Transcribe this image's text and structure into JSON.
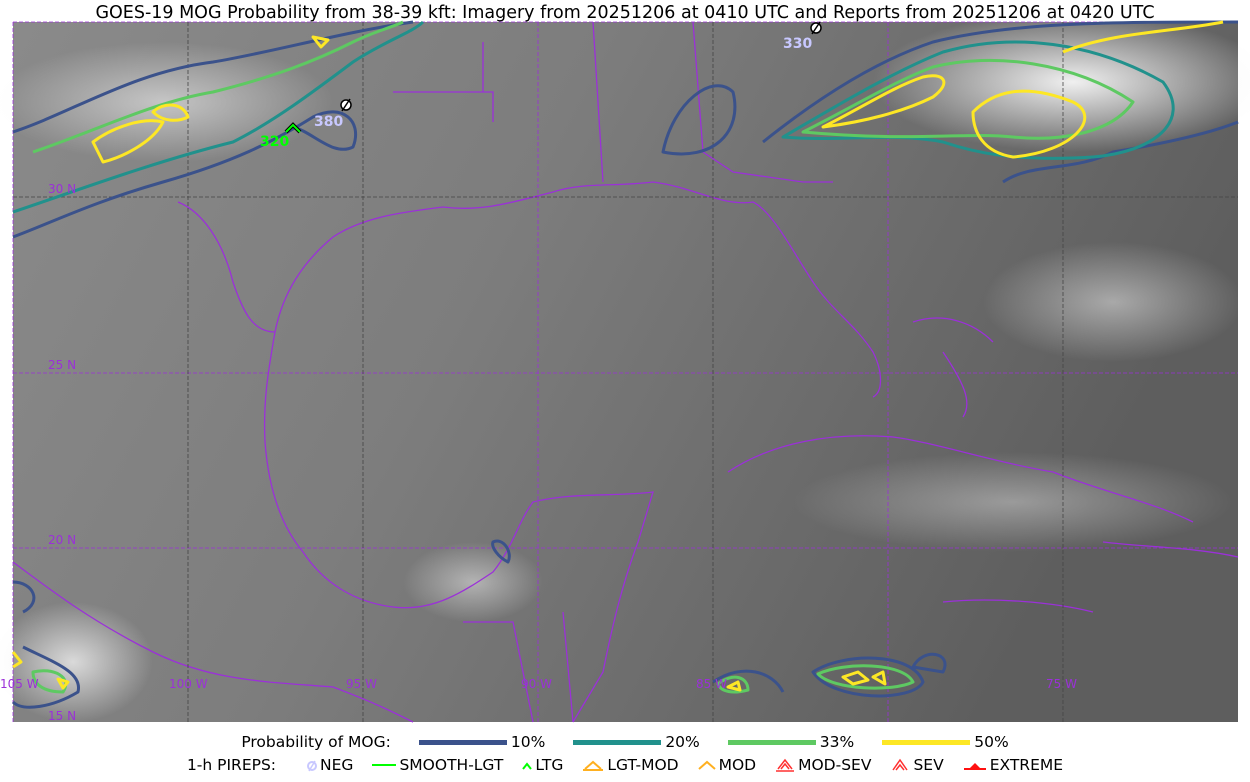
{
  "title": "GOES-19 MOG Probability from 38-39 kft: Imagery from 20251206 at 0410 UTC and Reports from 20251206 at 0420 UTC",
  "map": {
    "lat_labels": [
      "30 N",
      "25 N",
      "20 N",
      "15 N"
    ],
    "lon_labels": [
      "105 W",
      "100 W",
      "95 W",
      "90 W",
      "85 W",
      "75 W"
    ],
    "gridline_color": "#9b30d9",
    "pireps": [
      {
        "type": "LTG",
        "altitude": "320",
        "color": "#00ff00"
      },
      {
        "type": "NEG",
        "altitude": "380",
        "color": "#c8c8ff"
      },
      {
        "type": "NEG",
        "altitude": "330",
        "color": "#c8c8ff"
      }
    ]
  },
  "legend": {
    "probability_label": "Probability of MOG:",
    "levels": [
      {
        "label": "10%",
        "color": "#3b528b"
      },
      {
        "label": "20%",
        "color": "#21918c"
      },
      {
        "label": "33%",
        "color": "#5ec962"
      },
      {
        "label": "50%",
        "color": "#fde725"
      }
    ],
    "pireps_label": "1-h PIREPS:",
    "pirep_types": [
      {
        "label": "NEG",
        "icon": "neg-circle-slash-icon",
        "color": "#c8c8ff"
      },
      {
        "label": "SMOOTH-LGT",
        "icon": "line-icon",
        "color": "#00ff00"
      },
      {
        "label": "LTG",
        "icon": "caret-icon",
        "color": "#00ff00"
      },
      {
        "label": "LGT-MOD",
        "icon": "caret-bar-icon",
        "color": "#ffb020"
      },
      {
        "label": "MOD",
        "icon": "caret-icon",
        "color": "#ffb020"
      },
      {
        "label": "MOD-SEV",
        "icon": "double-caret-bar-icon",
        "color": "#ff3030"
      },
      {
        "label": "SEV",
        "icon": "double-caret-icon",
        "color": "#ff3030"
      },
      {
        "label": "EXTREME",
        "icon": "filled-triangle-icon",
        "color": "#ff1010"
      }
    ]
  }
}
